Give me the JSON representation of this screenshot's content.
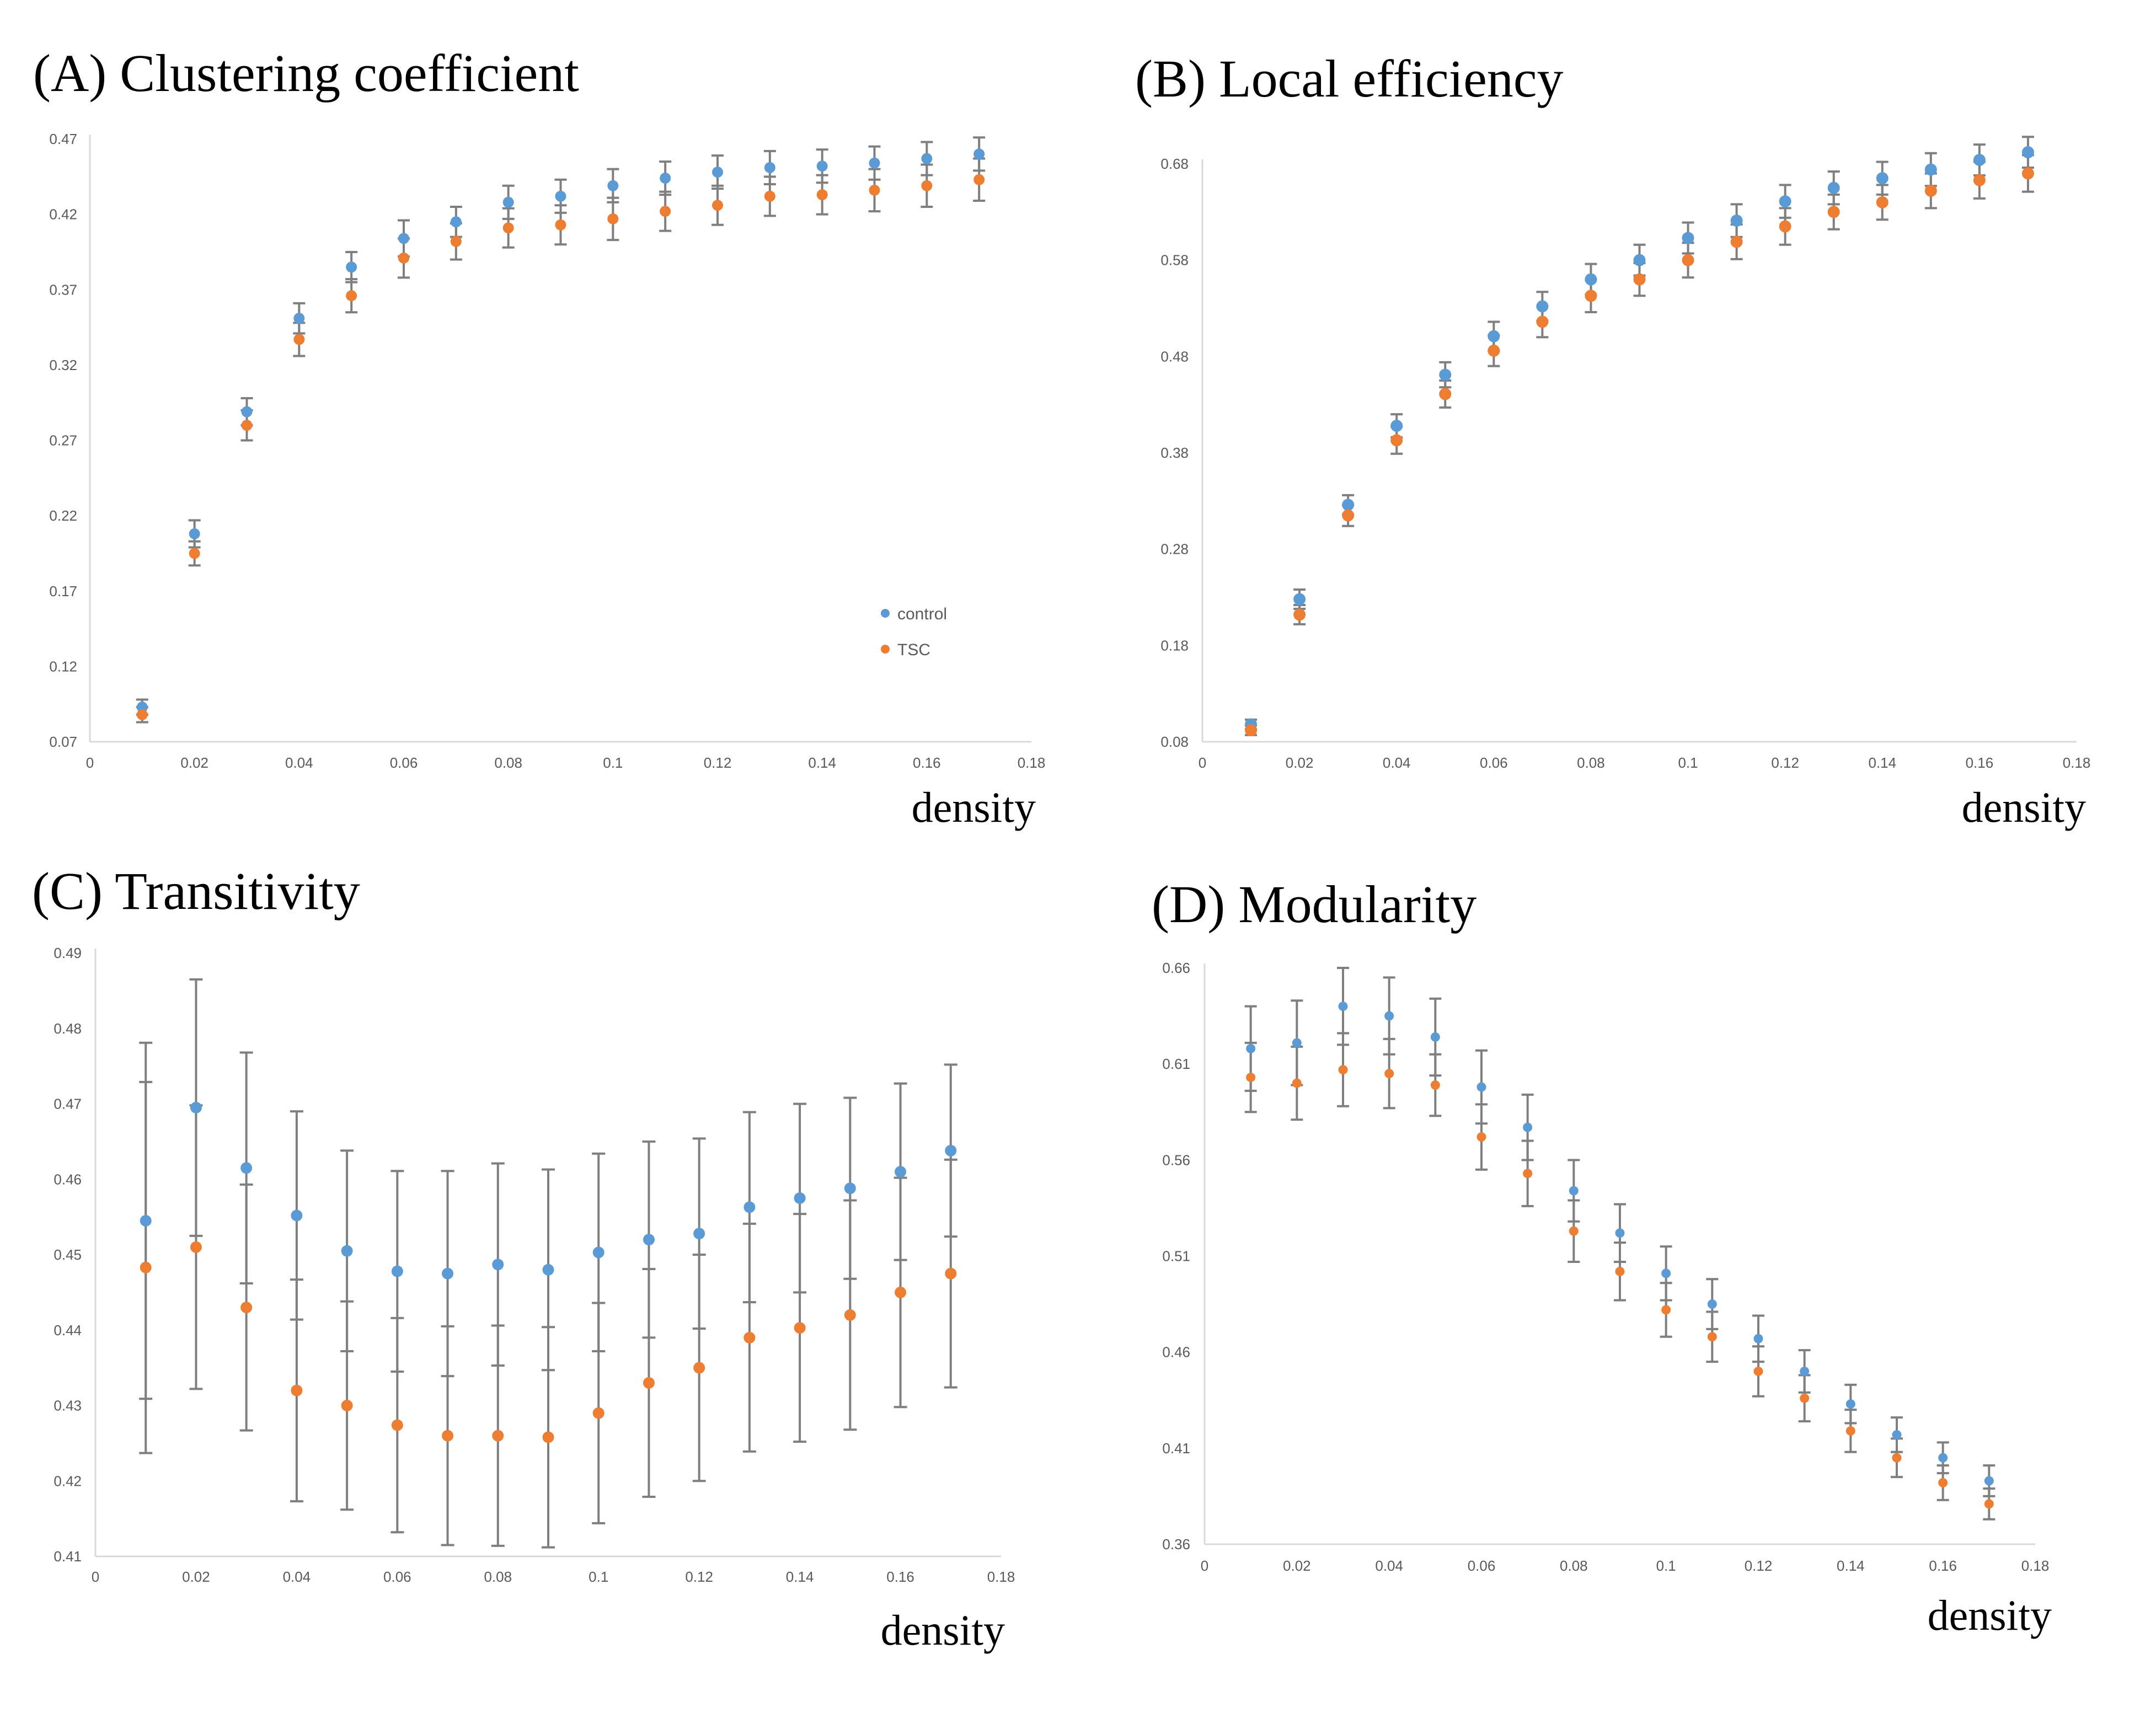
{
  "chart_data": [
    {
      "type": "scatter",
      "title": "(A) Clustering coefficient",
      "xlabel": "density",
      "ylabel": "",
      "xlim": [
        0,
        0.18
      ],
      "ylim": [
        0.07,
        0.47
      ],
      "xticks": [
        "0",
        "0.02",
        "0.04",
        "0.06",
        "0.08",
        "0.1",
        "0.12",
        "0.14",
        "0.16",
        "0.18"
      ],
      "yticks": [
        "0.07",
        "0.12",
        "0.17",
        "0.22",
        "0.27",
        "0.32",
        "0.37",
        "0.42",
        "0.47"
      ],
      "grid": false,
      "legend_position": "lower-right",
      "x": [
        0.01,
        0.02,
        0.03,
        0.04,
        0.05,
        0.06,
        0.07,
        0.08,
        0.09,
        0.1,
        0.11,
        0.12,
        0.13,
        0.14,
        0.15,
        0.16,
        0.17
      ],
      "series": [
        {
          "name": "control",
          "color": "#5b9bd5",
          "values": [
            0.093,
            0.208,
            0.289,
            0.351,
            0.385,
            0.404,
            0.415,
            0.428,
            0.432,
            0.439,
            0.444,
            0.448,
            0.451,
            0.452,
            0.454,
            0.457,
            0.46
          ],
          "errors": [
            0.005,
            0.009,
            0.009,
            0.01,
            0.01,
            0.012,
            0.01,
            0.011,
            0.011,
            0.011,
            0.011,
            0.011,
            0.011,
            0.011,
            0.011,
            0.011,
            0.011
          ]
        },
        {
          "name": "TSC",
          "color": "#ed7d31",
          "values": [
            0.088,
            0.195,
            0.28,
            0.337,
            0.366,
            0.391,
            0.402,
            0.411,
            0.413,
            0.417,
            0.422,
            0.426,
            0.432,
            0.433,
            0.436,
            0.439,
            0.443
          ],
          "errors": [
            0.005,
            0.008,
            0.01,
            0.011,
            0.011,
            0.013,
            0.012,
            0.013,
            0.013,
            0.014,
            0.013,
            0.013,
            0.013,
            0.013,
            0.014,
            0.014,
            0.014
          ]
        }
      ]
    },
    {
      "type": "scatter",
      "title": "(B) Local efficiency",
      "xlabel": "density",
      "ylabel": "",
      "xlim": [
        0,
        0.18
      ],
      "ylim": [
        0.08,
        0.68
      ],
      "xticks": [
        "0",
        "0.02",
        "0.04",
        "0.06",
        "0.08",
        "0.1",
        "0.12",
        "0.14",
        "0.16",
        "0.18"
      ],
      "yticks": [
        "0.08",
        "0.18",
        "0.28",
        "0.38",
        "0.48",
        "0.58",
        "0.68"
      ],
      "grid": false,
      "x": [
        0.01,
        0.02,
        0.03,
        0.04,
        0.05,
        0.06,
        0.07,
        0.08,
        0.09,
        0.1,
        0.11,
        0.12,
        0.13,
        0.14,
        0.15,
        0.16,
        0.17
      ],
      "series": [
        {
          "name": "control",
          "color": "#5b9bd5",
          "values": [
            0.098,
            0.228,
            0.326,
            0.408,
            0.461,
            0.501,
            0.532,
            0.56,
            0.58,
            0.603,
            0.621,
            0.641,
            0.655,
            0.665,
            0.674,
            0.684,
            0.692
          ],
          "errors": [
            0.005,
            0.01,
            0.01,
            0.012,
            0.013,
            0.015,
            0.015,
            0.016,
            0.016,
            0.016,
            0.017,
            0.017,
            0.017,
            0.017,
            0.017,
            0.016,
            0.016
          ]
        },
        {
          "name": "TSC",
          "color": "#ed7d31",
          "values": [
            0.092,
            0.212,
            0.315,
            0.393,
            0.441,
            0.486,
            0.516,
            0.543,
            0.56,
            0.58,
            0.599,
            0.615,
            0.63,
            0.64,
            0.652,
            0.663,
            0.67
          ],
          "errors": [
            0.005,
            0.01,
            0.011,
            0.014,
            0.014,
            0.016,
            0.016,
            0.017,
            0.017,
            0.018,
            0.018,
            0.019,
            0.018,
            0.018,
            0.018,
            0.019,
            0.019
          ]
        }
      ]
    },
    {
      "type": "scatter",
      "title": "(C) Transitivity",
      "xlabel": "density",
      "ylabel": "",
      "xlim": [
        0,
        0.18
      ],
      "ylim": [
        0.41,
        0.49
      ],
      "xticks": [
        "0",
        "0.02",
        "0.04",
        "0.06",
        "0.08",
        "0.1",
        "0.12",
        "0.14",
        "0.16",
        "0.18"
      ],
      "yticks": [
        "0.41",
        "0.42",
        "0.43",
        "0.44",
        "0.45",
        "0.46",
        "0.47",
        "0.48",
        "0.49"
      ],
      "grid": false,
      "x": [
        0.01,
        0.02,
        0.03,
        0.04,
        0.05,
        0.06,
        0.07,
        0.08,
        0.09,
        0.1,
        0.11,
        0.12,
        0.13,
        0.14,
        0.15,
        0.16,
        0.17
      ],
      "series": [
        {
          "name": "control",
          "color": "#5b9bd5",
          "values": [
            0.4545,
            0.4695,
            0.4615,
            0.4552,
            0.4505,
            0.4478,
            0.4475,
            0.4487,
            0.448,
            0.4503,
            0.452,
            0.4528,
            0.4563,
            0.4575,
            0.4588,
            0.461,
            0.4638
          ],
          "errors": [
            0.0236,
            0.017,
            0.0153,
            0.0138,
            0.0133,
            0.0133,
            0.0136,
            0.0134,
            0.0133,
            0.0131,
            0.013,
            0.0126,
            0.0126,
            0.0125,
            0.012,
            0.0117,
            0.0114
          ]
        },
        {
          "name": "TSC",
          "color": "#ed7d31",
          "values": [
            0.4483,
            0.451,
            0.443,
            0.432,
            0.43,
            0.4274,
            0.426,
            0.426,
            0.4258,
            0.429,
            0.433,
            0.435,
            0.439,
            0.4403,
            0.442,
            0.445,
            0.4475
          ],
          "errors": [
            0.0246,
            0.0188,
            0.0163,
            0.0147,
            0.0138,
            0.0142,
            0.0145,
            0.0146,
            0.0146,
            0.0146,
            0.0151,
            0.015,
            0.0151,
            0.0151,
            0.0152,
            0.0152,
            0.0151
          ]
        }
      ]
    },
    {
      "type": "scatter",
      "title": "(D) Modularity",
      "xlabel": "density",
      "ylabel": "",
      "xlim": [
        0,
        0.18
      ],
      "ylim": [
        0.36,
        0.66
      ],
      "xticks": [
        "0",
        "0.02",
        "0.04",
        "0.06",
        "0.08",
        "0.1",
        "0.12",
        "0.14",
        "0.16",
        "0.18"
      ],
      "yticks": [
        "0.36",
        "0.41",
        "0.46",
        "0.51",
        "0.56",
        "0.61",
        "0.66"
      ],
      "grid": false,
      "x": [
        0.01,
        0.02,
        0.03,
        0.04,
        0.05,
        0.06,
        0.07,
        0.08,
        0.09,
        0.1,
        0.11,
        0.12,
        0.13,
        0.14,
        0.15,
        0.16,
        0.17
      ],
      "series": [
        {
          "name": "control",
          "color": "#5b9bd5",
          "values": [
            0.618,
            0.621,
            0.64,
            0.635,
            0.624,
            0.598,
            0.577,
            0.544,
            0.522,
            0.501,
            0.485,
            0.467,
            0.45,
            0.433,
            0.417,
            0.405,
            0.393
          ],
          "errors": [
            0.022,
            0.022,
            0.02,
            0.02,
            0.02,
            0.019,
            0.017,
            0.016,
            0.015,
            0.014,
            0.013,
            0.012,
            0.011,
            0.01,
            0.009,
            0.008,
            0.008
          ]
        },
        {
          "name": "TSC",
          "color": "#ed7d31",
          "values": [
            0.603,
            0.6,
            0.607,
            0.605,
            0.599,
            0.572,
            0.553,
            0.523,
            0.502,
            0.482,
            0.468,
            0.45,
            0.436,
            0.419,
            0.405,
            0.392,
            0.381
          ],
          "errors": [
            0.018,
            0.019,
            0.019,
            0.018,
            0.016,
            0.017,
            0.017,
            0.016,
            0.015,
            0.014,
            0.013,
            0.013,
            0.012,
            0.011,
            0.01,
            0.009,
            0.008
          ]
        }
      ]
    }
  ]
}
